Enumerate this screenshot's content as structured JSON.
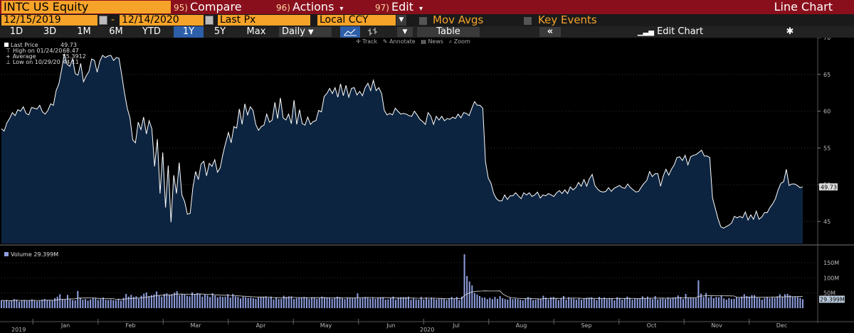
{
  "topbar": {
    "ticker": "INTC US Equity",
    "menus": [
      {
        "num": "95)",
        "label": "Compare"
      },
      {
        "num": "96)",
        "label": "Actions"
      },
      {
        "num": "97)",
        "label": "Edit"
      }
    ],
    "title": "Line Chart"
  },
  "controls": {
    "start_date": "12/15/2019",
    "end_date": "12/14/2020",
    "date_separator": "-",
    "field": "Last Px",
    "currency": "Local CCY",
    "mov_avgs": "Mov Avgs",
    "key_events": "Key Events"
  },
  "toolbar": {
    "ranges": [
      "1D",
      "3D",
      "1M",
      "6M",
      "YTD",
      "1Y",
      "5Y",
      "Max"
    ],
    "selected_range": "1Y",
    "frequency": "Daily",
    "table": "Table",
    "collapse": "«",
    "edit_chart": "Edit Chart"
  },
  "tools": {
    "track": "Track",
    "annotate": "Annotate",
    "news": "News",
    "zoom": "Zoom"
  },
  "legend": {
    "last_price_label": "Last Price",
    "last_price": "49.73",
    "high_label": "High on 01/24/20",
    "high": "68.47",
    "avg_label": "Average",
    "avg": "55.3912",
    "low_label": "Low on 10/29/20",
    "low": "44.11",
    "volume_label": "Volume",
    "volume": "29.399M"
  },
  "colors": {
    "accent": "#f6a32a",
    "topbar": "#8a0f1c",
    "selected": "#2d5ea8",
    "area": "#0d2440",
    "line": "#ffffff",
    "volume": "#8f9fe0"
  },
  "chart_data": [
    {
      "type": "area",
      "x_axis_labels": [
        "Jan",
        "Feb",
        "Mar",
        "Apr",
        "May",
        "Jun",
        "Jul",
        "Aug",
        "Sep",
        "Oct",
        "Nov",
        "Dec"
      ],
      "year_labels": [
        "2019",
        "2020"
      ],
      "y_ticks": [
        "45",
        "50",
        "55",
        "60",
        "65",
        "70"
      ],
      "ylim": [
        42,
        70
      ],
      "last_value_label": "49.73",
      "series": [
        {
          "values": [
            57.6,
            57.3,
            58.4,
            59,
            59.8,
            59.4,
            60.2,
            60,
            60.6,
            59.7,
            59.5,
            60.5,
            60.4,
            60.3,
            60.8,
            59.9,
            59.6,
            60.1,
            61,
            60.8,
            62.8,
            63.7,
            65.6,
            67.8,
            66.4,
            66.1,
            67.1,
            65.1,
            64.9,
            66.5,
            64,
            64.8,
            65.4,
            67.1,
            66.9,
            65.3,
            66.8,
            67.6,
            67.3,
            67.5,
            67.6,
            66.9,
            67.3,
            67.2,
            64.9,
            62.5,
            60.4,
            59.1,
            56.1,
            55.7,
            58.5,
            57.5,
            59.2,
            56.9,
            58.7,
            57.6,
            52.5,
            56.2,
            48.8,
            54.4,
            46.9,
            52.6,
            44.9,
            51.3,
            48.8,
            53,
            48.6,
            47.7,
            46,
            46.1,
            49.6,
            51.8,
            50.7,
            52.8,
            53.2,
            51.2,
            52.9,
            52.5,
            53.4,
            51.7,
            52.3,
            54.2,
            55.7,
            57.1,
            55.7,
            57.9,
            57.7,
            60.3,
            58.2,
            61,
            59.5,
            60.6,
            60.1,
            58.2,
            57.4,
            57.9,
            58.1,
            59.6,
            58.5,
            58.8,
            61.2,
            59,
            61.8,
            59.1,
            58.8,
            59.6,
            58.3,
            61.5,
            58.2,
            60.2,
            58.3,
            58.1,
            59.2,
            58.2,
            58.6,
            58.7,
            60.1,
            59.9,
            62,
            62.4,
            63.1,
            62.4,
            63.2,
            61.9,
            63.7,
            62.1,
            63.5,
            61.9,
            63.1,
            63.2,
            62.2,
            62.7,
            62.1,
            63.2,
            63.8,
            62.8,
            64.2,
            62.8,
            63.2,
            62.4,
            60.1,
            59.5,
            59.7,
            59.5,
            60.4,
            60,
            59.6,
            59.7,
            59.6,
            59.4,
            59.3,
            60,
            59.5,
            58.9,
            58.6,
            58.2,
            59.8,
            59.3,
            58.2,
            59.3,
            58.8,
            59.3,
            58.7,
            59,
            58.9,
            59.2,
            59,
            59.6,
            59.1,
            59.8,
            59.7,
            59.4,
            60.4,
            61.3,
            60.8,
            60.8,
            60.4,
            53.1,
            50.9,
            50.2,
            48.8,
            48.1,
            47.8,
            47.8,
            48.6,
            48,
            48.5,
            48.5,
            48.9,
            48.5,
            48.1,
            48.9,
            48.6,
            48.9,
            48.4,
            48.6,
            49,
            48.2,
            48.6,
            48.5,
            48.8,
            48.6,
            48.4,
            48.9,
            49.2,
            48.8,
            49.3,
            48.8,
            49.7,
            49.3,
            49.6,
            50.3,
            49.8,
            50.7,
            49.8,
            50.8,
            51.4,
            49.9,
            49.4,
            49.1,
            49,
            49.1,
            49.6,
            49.1,
            49.5,
            49.7,
            49.9,
            49.6,
            49.5,
            50.1,
            49.6,
            49.3,
            49,
            49.1,
            49.7,
            50.2,
            50.6,
            51.8,
            51.1,
            51.5,
            51.5,
            49.8,
            51.2,
            52.1,
            51.3,
            52.1,
            52.7,
            53.7,
            53.8,
            53.3,
            54,
            52.7,
            53.8,
            54,
            54.1,
            54.4,
            54.7,
            53.9,
            53.9,
            53.7,
            48.2,
            46.8,
            45.4,
            44.3,
            44.1,
            44.3,
            44.5,
            44.8,
            45.7,
            45.5,
            45.7,
            45.5,
            46.3,
            45.2,
            45.9,
            45.3,
            46.4,
            45.3,
            45.6,
            46.2,
            46.2,
            46.9,
            47.4,
            48.1,
            49.3,
            50.2,
            50.4,
            52.1,
            49.9,
            50.1,
            50.1,
            49.9,
            49.6,
            49.7
          ]
        }
      ]
    },
    {
      "type": "bar",
      "y_ticks": [
        "50M",
        "100M",
        "150M"
      ],
      "ylim": [
        0,
        190
      ],
      "last_value_label": "29.399M",
      "series": [
        {
          "name": "Volume",
          "values": [
            26,
            24,
            27,
            23,
            25,
            30,
            28,
            22,
            25,
            27,
            24,
            26,
            29,
            25,
            23,
            24,
            28,
            30,
            27,
            25,
            26,
            33,
            38,
            46,
            30,
            29,
            44,
            31,
            27,
            26,
            57,
            34,
            28,
            30,
            25,
            29,
            33,
            32,
            27,
            30,
            35,
            28,
            27,
            29,
            27,
            26,
            31,
            25,
            34,
            47,
            38,
            44,
            37,
            39,
            32,
            41,
            48,
            52,
            40,
            43,
            45,
            55,
            42,
            38,
            47,
            49,
            44,
            46,
            51,
            56,
            43,
            47,
            45,
            41,
            39,
            52,
            46,
            50,
            48,
            38,
            45,
            43,
            37,
            49,
            42,
            36,
            39,
            37,
            38,
            46,
            35,
            47,
            39,
            37,
            32,
            38,
            36,
            34,
            35,
            33,
            31,
            35,
            36,
            37,
            39,
            34,
            38,
            29,
            35,
            30,
            31,
            41,
            37,
            39,
            39,
            30,
            33,
            34,
            34,
            37,
            34,
            31,
            36,
            35,
            31,
            33,
            38,
            36,
            35,
            34,
            31,
            34,
            38,
            36,
            33,
            30,
            33,
            34,
            34,
            34,
            49,
            33,
            35,
            37,
            36,
            32,
            34,
            31,
            33,
            35,
            36,
            28,
            29,
            33,
            38,
            28,
            35,
            36,
            36,
            36,
            38,
            28,
            32,
            29,
            28,
            37,
            29,
            35,
            30,
            35,
            31,
            29,
            31,
            33,
            31,
            27,
            33,
            37,
            31,
            37,
            27,
            38,
            178,
            106,
            88,
            75,
            50,
            45,
            40,
            35,
            35,
            30,
            34,
            30,
            37,
            31,
            40,
            33,
            30,
            28,
            34,
            30,
            31,
            30,
            28,
            26,
            32,
            37,
            34,
            27,
            28,
            32,
            31,
            41,
            35,
            29,
            36,
            37,
            31,
            27,
            33,
            40,
            28,
            36,
            32,
            31,
            28,
            33,
            28,
            32,
            34,
            35,
            36,
            30,
            27,
            37,
            32,
            35,
            30,
            33,
            32,
            26,
            36,
            32,
            28,
            33,
            38,
            34,
            28,
            31,
            32,
            32,
            39,
            32,
            38,
            33,
            30,
            40,
            29,
            31,
            32,
            30,
            36,
            32,
            35,
            36,
            42,
            37,
            30,
            47,
            33,
            34,
            33,
            33,
            92,
            48,
            37,
            50,
            35,
            39,
            33,
            37,
            36,
            42,
            32,
            28,
            33,
            30,
            31,
            36,
            34,
            38,
            46,
            40,
            38,
            43,
            43,
            35,
            34,
            28,
            34,
            37,
            33,
            35,
            34,
            39,
            46,
            38,
            46,
            47,
            42,
            38,
            39,
            37,
            34,
            29.4
          ]
        }
      ]
    }
  ]
}
